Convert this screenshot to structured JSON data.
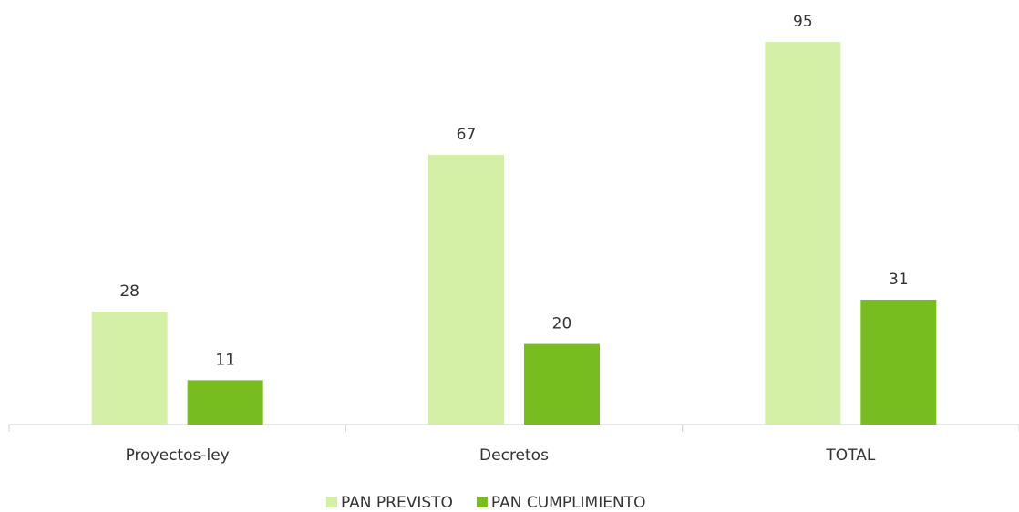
{
  "chart_data": {
    "type": "bar",
    "categories": [
      "Proyectos-ley",
      "Decretos",
      "TOTAL"
    ],
    "series": [
      {
        "name": "PAN PREVISTO",
        "color": "#d3f0a6",
        "values": [
          28,
          67,
          95
        ]
      },
      {
        "name": "PAN CUMPLIMIENTO",
        "color": "#78bd1f",
        "values": [
          11,
          20,
          31
        ]
      }
    ],
    "legend": "bottom"
  }
}
